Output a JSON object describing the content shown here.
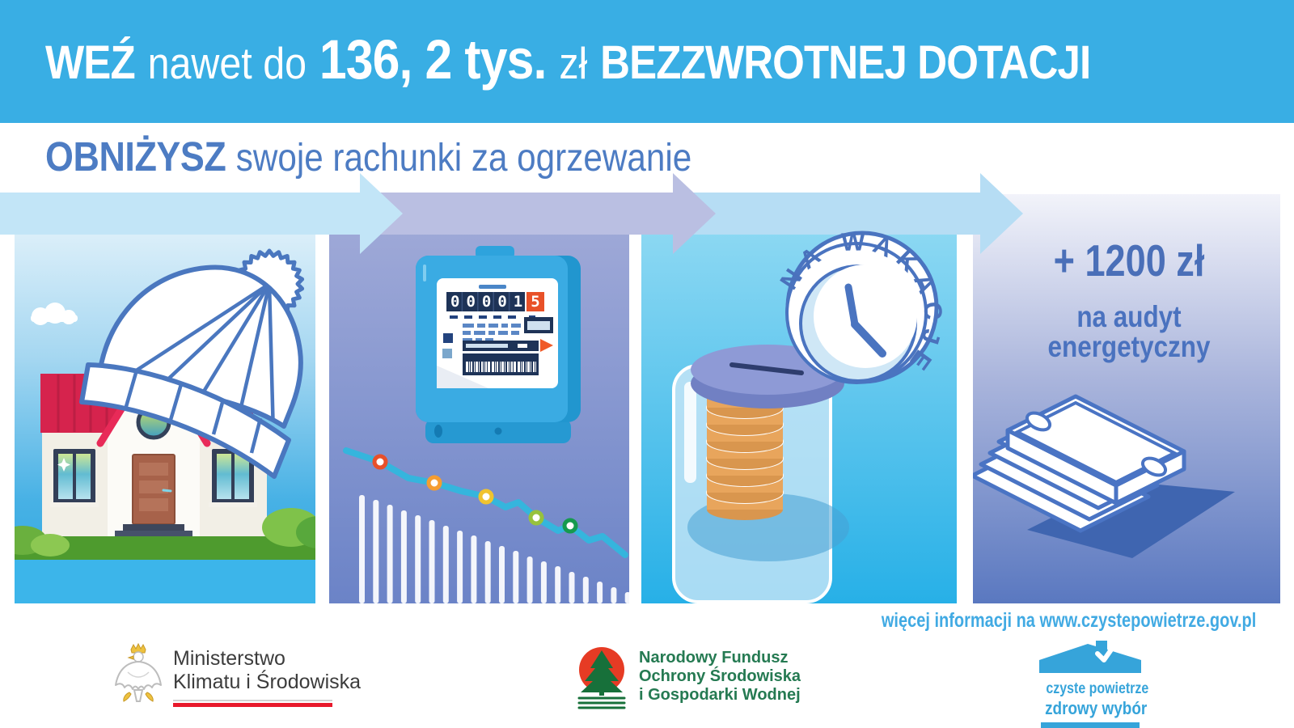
{
  "banner": {
    "part1": "WEŹ",
    "part2": "nawet do",
    "part3": "136, 2 tys.",
    "part4": "zł",
    "part5": "BEZZWROTNEJ DOTACJI"
  },
  "subtitle": {
    "bold": "OBNIŻYSZ",
    "rest": "swoje rachunki za ogrzewanie"
  },
  "panels": {
    "house": {
      "description": "house-with-winter-hat-illustration"
    },
    "meter": {
      "digits": "00001",
      "last_digit": "5"
    },
    "jar": {
      "clock_label": "NA WAKACJE"
    },
    "audit": {
      "amount": "+ 1200 zł",
      "line1": "na audyt",
      "line2": "energetyczny"
    }
  },
  "info": {
    "text": "więcej informacji na www.czystepowietrze.gov.pl"
  },
  "logos": {
    "ministry": {
      "line1": "Ministerstwo",
      "line2": "Klimatu i Środowiska"
    },
    "nfos": {
      "line1": "Narodowy Fundusz",
      "line2": "Ochrony Środowiska",
      "line3": "i Gospodarki Wodnej"
    },
    "czyste": {
      "line1": "czyste powietrze",
      "line2": "zdrowy wybór"
    }
  },
  "colors": {
    "brand_blue": "#39aee4",
    "heading_blue": "#4d7cc3",
    "panel4_text": "#4a6fb8",
    "info_blue": "#41aae3",
    "ministry_red": "#e8192c",
    "nfos_green": "#257a52",
    "nfos_red": "#e63b24"
  }
}
